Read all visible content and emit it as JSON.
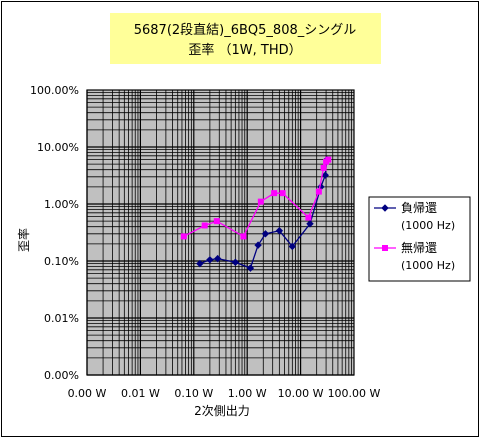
{
  "chart_data": {
    "type": "line",
    "title_line1": "5687(2段直結)_6BQ5_808_シングル",
    "title_line2": "歪率 （1W, THD）",
    "xlabel": "2次側出力",
    "ylabel": "歪率",
    "x_scale": "log",
    "y_scale": "log",
    "xlim": [
      0.001,
      100
    ],
    "ylim": [
      1e-05,
      1
    ],
    "x_ticks": [
      {
        "value": 0.001,
        "label": "0.00 W"
      },
      {
        "value": 0.01,
        "label": "0.01 W"
      },
      {
        "value": 0.1,
        "label": "0.10 W"
      },
      {
        "value": 1,
        "label": "1.00 W"
      },
      {
        "value": 10,
        "label": "10.00 W"
      },
      {
        "value": 100,
        "label": "100.00 W"
      }
    ],
    "y_ticks": [
      {
        "value": 1,
        "label": "100.00%"
      },
      {
        "value": 0.1,
        "label": "10.00%"
      },
      {
        "value": 0.01,
        "label": "1.00%"
      },
      {
        "value": 0.001,
        "label": "0.10%"
      },
      {
        "value": 0.0001,
        "label": "0.01%"
      },
      {
        "value": 1e-05,
        "label": "0.00%"
      }
    ],
    "grid": true,
    "plot_background": "#c0c0c0",
    "legend_position": "right",
    "series": [
      {
        "name": "負帰還",
        "name_sub": "(1000 Hz)",
        "color": "#000080",
        "marker": "diamond",
        "x": [
          0.13,
          0.2,
          0.28,
          0.6,
          1.15,
          1.6,
          2.2,
          4.0,
          7.0,
          15.0,
          24.0,
          29.0,
          31.0
        ],
        "y": [
          0.0009,
          0.00105,
          0.0011,
          0.00095,
          0.00075,
          0.0019,
          0.003,
          0.0034,
          0.0018,
          0.0045,
          0.02,
          0.032,
          0.06
        ]
      },
      {
        "name": "無帰還",
        "name_sub": "(1000 Hz)",
        "color": "#ff00ff",
        "marker": "square",
        "x": [
          0.065,
          0.16,
          0.27,
          0.85,
          1.8,
          3.2,
          4.6,
          14.0,
          22.0,
          27.0,
          30.0,
          33.0
        ],
        "y": [
          0.0027,
          0.0042,
          0.005,
          0.0027,
          0.011,
          0.0155,
          0.0155,
          0.0058,
          0.0165,
          0.043,
          0.055,
          0.06
        ]
      }
    ]
  }
}
